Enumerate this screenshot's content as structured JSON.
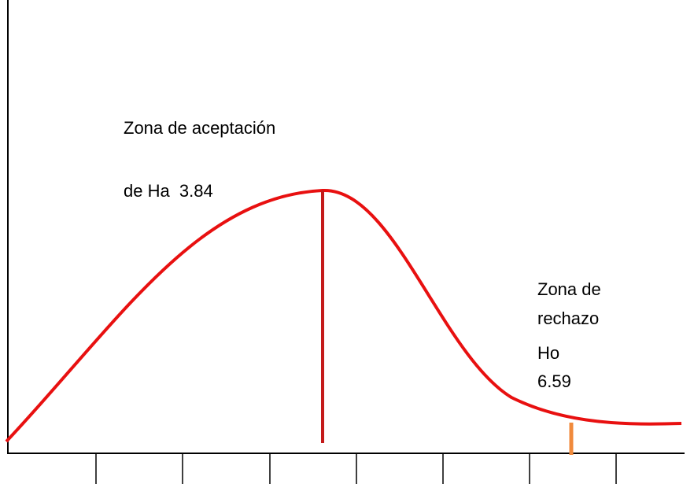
{
  "acceptance": {
    "title": "Zona de aceptación",
    "value": "de Ha  3.84"
  },
  "rejection": {
    "title_lines": [
      "Zona de",
      "rechazo"
    ],
    "hypothesis": "Ho",
    "value": "6.59"
  }
}
